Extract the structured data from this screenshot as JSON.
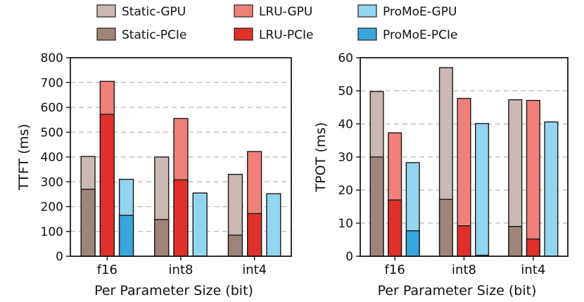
{
  "legend": {
    "items": [
      {
        "key": "static_gpu",
        "label": "Static-GPU",
        "color": "#c9b8b3"
      },
      {
        "key": "lru_gpu",
        "label": "LRU-GPU",
        "color": "#ef8079"
      },
      {
        "key": "promoe_gpu",
        "label": "ProMoE-GPU",
        "color": "#93d4ef"
      },
      {
        "key": "static_pcie",
        "label": "Static-PCIe",
        "color": "#a08479"
      },
      {
        "key": "lru_pcie",
        "label": "LRU-PCIe",
        "color": "#e0302a"
      },
      {
        "key": "promoe_pcie",
        "label": "ProMoE-PCIe",
        "color": "#3aa6dd"
      }
    ]
  },
  "chart_data": [
    {
      "type": "bar",
      "stacked": true,
      "ylabel": "TTFT (ms)",
      "xlabel": "Per Parameter Size (bit)",
      "ylim": [
        0,
        800
      ],
      "yticks": [
        "0",
        "100",
        "200",
        "300",
        "400",
        "500",
        "600",
        "700",
        "800"
      ],
      "categories": [
        "f16",
        "int8",
        "int4"
      ],
      "grid": "horizontal dashed",
      "systems": [
        {
          "name": "Static",
          "pcie": [
            270,
            148,
            85
          ],
          "total": [
            402,
            400,
            330
          ]
        },
        {
          "name": "LRU",
          "pcie": [
            572,
            308,
            172
          ],
          "total": [
            705,
            555,
            422
          ]
        },
        {
          "name": "ProMoE",
          "pcie": [
            165,
            null,
            null
          ],
          "total": [
            310,
            255,
            252
          ]
        }
      ]
    },
    {
      "type": "bar",
      "stacked": true,
      "ylabel": "TPOT (ms)",
      "xlabel": "Per Parameter Size (bit)",
      "ylim": [
        0,
        60
      ],
      "yticks": [
        "0",
        "10",
        "20",
        "30",
        "40",
        "50",
        "60"
      ],
      "categories": [
        "f16",
        "int8",
        "int4"
      ],
      "grid": "horizontal dashed",
      "systems": [
        {
          "name": "Static",
          "pcie": [
            30,
            17.2,
            9
          ],
          "total": [
            49.8,
            57,
            47.3
          ]
        },
        {
          "name": "LRU",
          "pcie": [
            17,
            9.2,
            5.2
          ],
          "total": [
            37.3,
            47.7,
            47.1
          ]
        },
        {
          "name": "ProMoE",
          "pcie": [
            7.7,
            0.3,
            null
          ],
          "total": [
            28.3,
            40.1,
            40.6
          ]
        }
      ]
    }
  ]
}
